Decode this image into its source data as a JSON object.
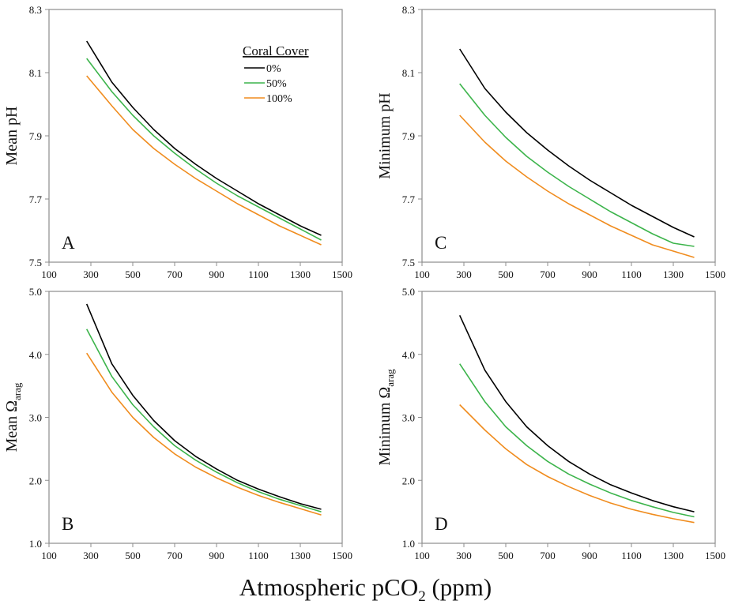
{
  "figure": {
    "xlabel_text": "Atmospheric pCO",
    "xlabel_sub": "2",
    "xlabel_unit": " (ppm)"
  },
  "legend": {
    "title": "Coral Cover",
    "entries": [
      "0%",
      "50%",
      "100%"
    ]
  },
  "chart_data": [
    {
      "panel": "A",
      "type": "line",
      "ylabel": "Mean pH",
      "xlim": [
        100,
        1500
      ],
      "ylim": [
        7.5,
        8.3
      ],
      "xticks": [
        100,
        300,
        500,
        700,
        900,
        1100,
        1300,
        1500
      ],
      "yticks": [
        7.5,
        7.7,
        7.9,
        8.1,
        8.3
      ],
      "x": [
        280,
        400,
        500,
        600,
        700,
        800,
        900,
        1000,
        1100,
        1200,
        1300,
        1400
      ],
      "series": [
        {
          "name": "0%",
          "color": "#000000",
          "values": [
            8.2,
            8.07,
            7.99,
            7.92,
            7.86,
            7.81,
            7.765,
            7.725,
            7.685,
            7.65,
            7.615,
            7.585
          ]
        },
        {
          "name": "50%",
          "color": "#3cb44b",
          "values": [
            8.145,
            8.04,
            7.965,
            7.9,
            7.845,
            7.795,
            7.75,
            7.71,
            7.675,
            7.64,
            7.605,
            7.57
          ]
        },
        {
          "name": "100%",
          "color": "#f08c1e",
          "values": [
            8.09,
            7.995,
            7.92,
            7.86,
            7.81,
            7.765,
            7.725,
            7.685,
            7.65,
            7.615,
            7.585,
            7.555
          ]
        }
      ]
    },
    {
      "panel": "C",
      "type": "line",
      "ylabel": "Minimum pH",
      "xlim": [
        100,
        1500
      ],
      "ylim": [
        7.5,
        8.3
      ],
      "xticks": [
        100,
        300,
        500,
        700,
        900,
        1100,
        1300,
        1500
      ],
      "yticks": [
        7.5,
        7.7,
        7.9,
        8.1,
        8.3
      ],
      "x": [
        280,
        400,
        500,
        600,
        700,
        800,
        900,
        1000,
        1100,
        1200,
        1300,
        1400
      ],
      "series": [
        {
          "name": "0%",
          "color": "#000000",
          "values": [
            8.175,
            8.05,
            7.975,
            7.91,
            7.855,
            7.805,
            7.76,
            7.72,
            7.68,
            7.645,
            7.61,
            7.58
          ]
        },
        {
          "name": "50%",
          "color": "#3cb44b",
          "values": [
            8.065,
            7.965,
            7.895,
            7.835,
            7.785,
            7.74,
            7.7,
            7.66,
            7.625,
            7.59,
            7.56,
            7.55
          ]
        },
        {
          "name": "100%",
          "color": "#f08c1e",
          "values": [
            7.965,
            7.88,
            7.82,
            7.77,
            7.725,
            7.685,
            7.65,
            7.615,
            7.585,
            7.555,
            7.535,
            7.515
          ]
        }
      ]
    },
    {
      "panel": "B",
      "type": "line",
      "ylabel": "Mean Ω",
      "ylabel_sub": "arag",
      "xlim": [
        100,
        1500
      ],
      "ylim": [
        1,
        5
      ],
      "xticks": [
        100,
        300,
        500,
        700,
        900,
        1100,
        1300,
        1500
      ],
      "yticks": [
        1,
        2,
        3,
        4,
        5
      ],
      "x": [
        280,
        400,
        500,
        600,
        700,
        800,
        900,
        1000,
        1100,
        1200,
        1300,
        1400
      ],
      "series": [
        {
          "name": "0%",
          "color": "#000000",
          "values": [
            4.8,
            3.85,
            3.35,
            2.95,
            2.63,
            2.38,
            2.18,
            2.0,
            1.86,
            1.74,
            1.63,
            1.54
          ]
        },
        {
          "name": "50%",
          "color": "#3cb44b",
          "values": [
            4.4,
            3.65,
            3.2,
            2.85,
            2.55,
            2.32,
            2.13,
            1.96,
            1.82,
            1.7,
            1.6,
            1.5
          ]
        },
        {
          "name": "100%",
          "color": "#f08c1e",
          "values": [
            4.02,
            3.4,
            3.0,
            2.68,
            2.42,
            2.21,
            2.04,
            1.89,
            1.76,
            1.65,
            1.55,
            1.45
          ]
        }
      ]
    },
    {
      "panel": "D",
      "type": "line",
      "ylabel": "Minimum Ω",
      "ylabel_sub": "arag",
      "xlim": [
        100,
        1500
      ],
      "ylim": [
        1,
        5
      ],
      "xticks": [
        100,
        300,
        500,
        700,
        900,
        1100,
        1300,
        1500
      ],
      "yticks": [
        1,
        2,
        3,
        4,
        5
      ],
      "x": [
        280,
        400,
        500,
        600,
        700,
        800,
        900,
        1000,
        1100,
        1200,
        1300,
        1400
      ],
      "series": [
        {
          "name": "0%",
          "color": "#000000",
          "values": [
            4.62,
            3.75,
            3.25,
            2.85,
            2.55,
            2.3,
            2.1,
            1.93,
            1.8,
            1.68,
            1.58,
            1.5
          ]
        },
        {
          "name": "50%",
          "color": "#3cb44b",
          "values": [
            3.85,
            3.25,
            2.85,
            2.55,
            2.3,
            2.1,
            1.94,
            1.8,
            1.68,
            1.58,
            1.49,
            1.42
          ]
        },
        {
          "name": "100%",
          "color": "#f08c1e",
          "values": [
            3.2,
            2.8,
            2.5,
            2.25,
            2.06,
            1.9,
            1.76,
            1.64,
            1.54,
            1.46,
            1.39,
            1.33
          ]
        }
      ]
    }
  ]
}
